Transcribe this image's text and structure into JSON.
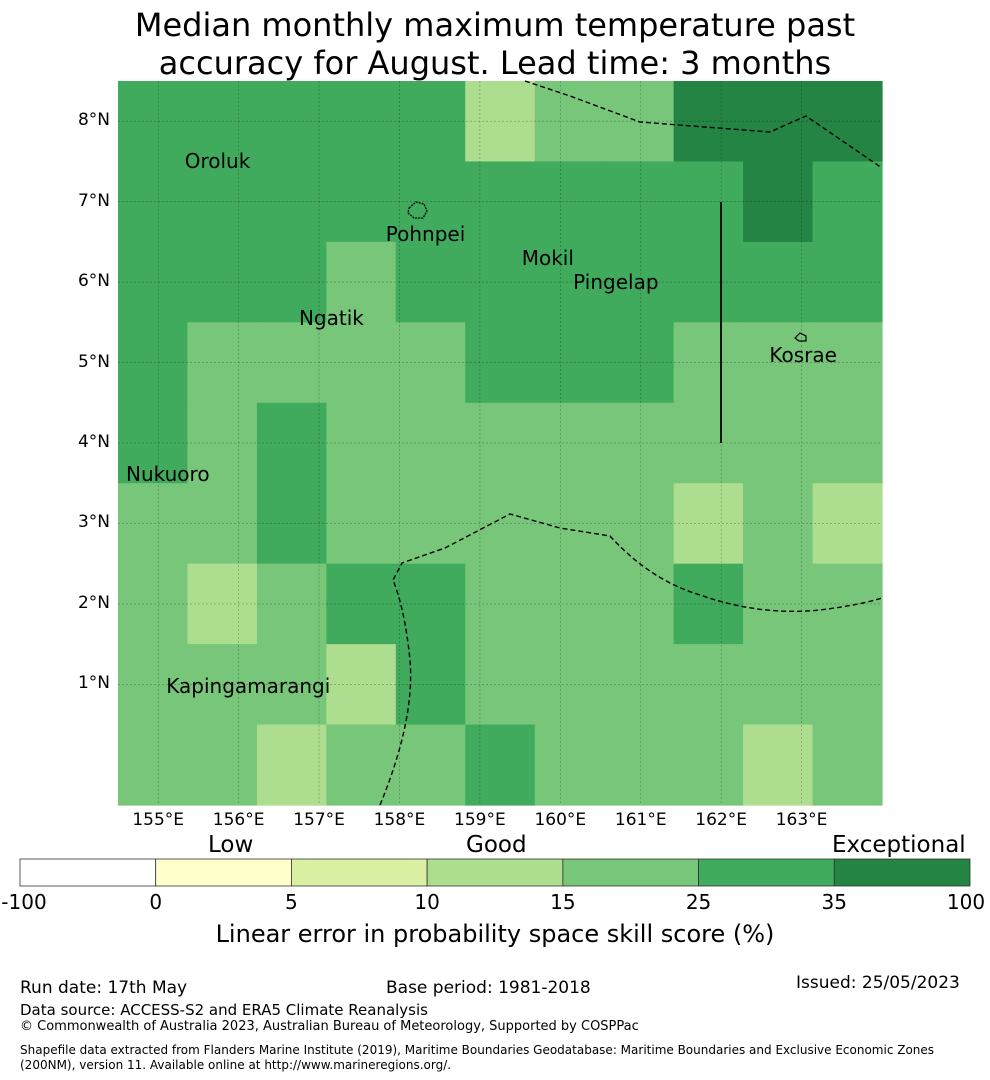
{
  "title_line1": "Median monthly maximum temperature past",
  "title_line2": "accuracy for August. Lead time: 3 months",
  "map": {
    "lon_min": 154.5,
    "lon_max": 164.0,
    "lat_min": -0.5,
    "lat_max": 8.5,
    "cell_size_deg": 0.8333,
    "grid_cols": 11,
    "grid_rows": 9,
    "grid_levels": [
      [
        5,
        5,
        5,
        5,
        5,
        3,
        4,
        4,
        6,
        6,
        6
      ],
      [
        5,
        5,
        5,
        5,
        5,
        5,
        5,
        5,
        5,
        6,
        5
      ],
      [
        5,
        5,
        5,
        4,
        5,
        5,
        5,
        5,
        5,
        5,
        5
      ],
      [
        5,
        4,
        4,
        4,
        4,
        5,
        5,
        5,
        4,
        4,
        4
      ],
      [
        5,
        4,
        5,
        4,
        4,
        4,
        4,
        4,
        4,
        4,
        4
      ],
      [
        4,
        4,
        5,
        4,
        4,
        4,
        4,
        4,
        3,
        4,
        3
      ],
      [
        4,
        3,
        4,
        5,
        5,
        4,
        4,
        4,
        5,
        4,
        4
      ],
      [
        4,
        4,
        4,
        3,
        5,
        4,
        4,
        4,
        4,
        4,
        4
      ],
      [
        4,
        4,
        3,
        4,
        4,
        5,
        4,
        4,
        4,
        3,
        4
      ]
    ],
    "lon_ticks": [
      {
        "value": 155,
        "label": "155°E"
      },
      {
        "value": 156,
        "label": "156°E"
      },
      {
        "value": 157,
        "label": "157°E"
      },
      {
        "value": 158,
        "label": "158°E"
      },
      {
        "value": 159,
        "label": "159°E"
      },
      {
        "value": 160,
        "label": "160°E"
      },
      {
        "value": 161,
        "label": "161°E"
      },
      {
        "value": 162,
        "label": "162°E"
      },
      {
        "value": 163,
        "label": "163°E"
      }
    ],
    "lat_ticks": [
      {
        "value": 8,
        "label": "8°N"
      },
      {
        "value": 7,
        "label": "7°N"
      },
      {
        "value": 6,
        "label": "6°N"
      },
      {
        "value": 5,
        "label": "5°N"
      },
      {
        "value": 4,
        "label": "4°N"
      },
      {
        "value": 3,
        "label": "3°N"
      },
      {
        "value": 2,
        "label": "2°N"
      },
      {
        "value": 1,
        "label": "1°N"
      }
    ],
    "places": [
      {
        "name": "Oroluk",
        "lon": 155.33,
        "lat": 7.5
      },
      {
        "name": "Pohnpei",
        "lon": 157.83,
        "lat": 6.6
      },
      {
        "name": "Mokil",
        "lon": 159.52,
        "lat": 6.3
      },
      {
        "name": "Pingelap",
        "lon": 160.16,
        "lat": 6.0
      },
      {
        "name": "Ngatik",
        "lon": 156.75,
        "lat": 5.55
      },
      {
        "name": "Kosrae",
        "lon": 162.6,
        "lat": 5.1
      },
      {
        "name": "Nukuoro",
        "lon": 154.6,
        "lat": 3.62
      },
      {
        "name": "Kapingamarangi",
        "lon": 155.1,
        "lat": 0.98
      }
    ]
  },
  "legend": {
    "colors": [
      "#ffffff",
      "#ffffcc",
      "#d9f0a3",
      "#addd8e",
      "#78c679",
      "#41ab5d",
      "#238443"
    ],
    "ticks": [
      "-100",
      "0",
      "5",
      "10",
      "15",
      "25",
      "35",
      "100"
    ],
    "categories": [
      "Low",
      "Good",
      "Exceptional"
    ],
    "title": "Linear error in probability space skill score (%)"
  },
  "footer": {
    "run_date": "Run date: 17th May",
    "base_period": "Base period: 1981-2018",
    "issued": "Issued: 25/05/2023",
    "data_source": "Data source: ACCESS-S2 and ERA5 Climate Reanalysis",
    "copyright": "© Commonwealth of Australia 2023, Australian Bureau of Meteorology, Supported by COSPPac",
    "shapefile": "Shapefile data extracted from Flanders Marine Institute (2019), Maritime Boundaries Geodatabase: Maritime Boundaries and Exclusive Economic Zones (200NM), version 11. Available online at http://www.marineregions.org/."
  }
}
